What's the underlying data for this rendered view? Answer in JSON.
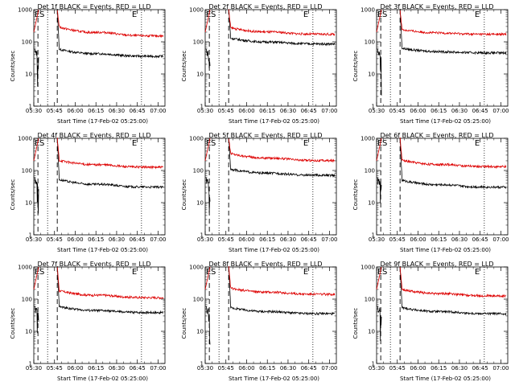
{
  "chart_data": [
    {
      "type": "line",
      "title": "Det 1f BLACK = Events, RED = LLD",
      "ylabel": "Counts/sec",
      "xlabel": "Start Time (17-Feb-02 05:25:00)",
      "xticks": [
        "05:30",
        "05:45",
        "06:00",
        "06:15",
        "06:30",
        "06:45",
        "07:00"
      ],
      "yticks": [
        "1",
        "10",
        "100",
        "1000"
      ],
      "x_range_min": [
        5,
        100
      ],
      "yscale": "log",
      "ylim": [
        1,
        1000
      ],
      "markers": {
        "E_label": "E",
        "S_label": "S",
        "dashed_min": [
          8,
          22
        ],
        "dotted_min": [
          15,
          83
        ]
      },
      "series": [
        {
          "name": "BLACK = Events",
          "color": "#000000",
          "plateau_min": 22,
          "peak": 1000,
          "end_level": 35,
          "mid_bump": 45
        },
        {
          "name": "RED = LLD",
          "color": "#dd0000",
          "plateau_min": 22,
          "peak": 1000,
          "end_level": 150,
          "mid_bump": 220
        }
      ]
    },
    {
      "type": "line",
      "title": "Det 2f BLACK = Events, RED = LLD",
      "ylabel": "Counts/sec",
      "xlabel": "Start Time (17-Feb-02 05:25:00)",
      "xticks": [
        "05:30",
        "05:45",
        "06:00",
        "06:15",
        "06:30",
        "06:45",
        "07:00"
      ],
      "yticks": [
        "1",
        "10",
        "100",
        "1000"
      ],
      "x_range_min": [
        5,
        100
      ],
      "yscale": "log",
      "ylim": [
        1,
        1000
      ],
      "markers": {
        "E_label": "E",
        "S_label": "S",
        "dashed_min": [
          8,
          22
        ],
        "dotted_min": [
          15,
          83
        ]
      },
      "series": [
        {
          "name": "BLACK = Events",
          "color": "#000000",
          "plateau_min": 22,
          "peak": 1000,
          "end_level": 85,
          "mid_bump": 100
        },
        {
          "name": "RED = LLD",
          "color": "#dd0000",
          "plateau_min": 22,
          "peak": 1000,
          "end_level": 170,
          "mid_bump": 210
        }
      ]
    },
    {
      "type": "line",
      "title": "Det 3f BLACK = Events, RED = LLD",
      "ylabel": "Counts/sec",
      "xlabel": "Start Time (17-Feb-02 05:25:00)",
      "xticks": [
        "05:30",
        "05:45",
        "06:00",
        "06:15",
        "06:30",
        "06:45",
        "07:00"
      ],
      "yticks": [
        "1",
        "10",
        "100",
        "1000"
      ],
      "x_range_min": [
        5,
        100
      ],
      "yscale": "log",
      "ylim": [
        1,
        1000
      ],
      "markers": {
        "E_label": "E",
        "S_label": "S",
        "dashed_min": [
          8,
          22
        ],
        "dotted_min": [
          15,
          83
        ]
      },
      "series": [
        {
          "name": "BLACK = Events",
          "color": "#000000",
          "plateau_min": 22,
          "peak": 1000,
          "end_level": 45,
          "mid_bump": 48
        },
        {
          "name": "RED = LLD",
          "color": "#dd0000",
          "plateau_min": 22,
          "peak": 1000,
          "end_level": 170,
          "mid_bump": 185
        }
      ]
    },
    {
      "type": "line",
      "title": "Det 4f BLACK = Events, RED = LLD",
      "ylabel": "Counts/sec",
      "xlabel": "Start Time (17-Feb-02 05:25:00)",
      "xticks": [
        "05:30",
        "05:45",
        "06:00",
        "06:15",
        "06:30",
        "06:45",
        "07:00"
      ],
      "yticks": [
        "1",
        "10",
        "100",
        "1000"
      ],
      "x_range_min": [
        5,
        100
      ],
      "yscale": "log",
      "ylim": [
        1,
        1000
      ],
      "markers": {
        "E_label": "E",
        "S_label": "S",
        "dashed_min": [
          8,
          22
        ],
        "dotted_min": [
          15,
          83
        ]
      },
      "series": [
        {
          "name": "BLACK = Events",
          "color": "#000000",
          "plateau_min": 22,
          "peak": 1000,
          "end_level": 30,
          "mid_bump": 40
        },
        {
          "name": "RED = LLD",
          "color": "#dd0000",
          "plateau_min": 22,
          "peak": 1000,
          "end_level": 125,
          "mid_bump": 160
        }
      ]
    },
    {
      "type": "line",
      "title": "Det 5f BLACK = Events, RED = LLD",
      "ylabel": "Counts/sec",
      "xlabel": "Start Time (17-Feb-02 05:25:00)",
      "xticks": [
        "05:30",
        "05:45",
        "06:00",
        "06:15",
        "06:30",
        "06:45",
        "07:00"
      ],
      "yticks": [
        "1",
        "10",
        "100",
        "1000"
      ],
      "x_range_min": [
        5,
        100
      ],
      "yscale": "log",
      "ylim": [
        1,
        1000
      ],
      "markers": {
        "E_label": "E",
        "S_label": "S",
        "dashed_min": [
          8,
          22
        ],
        "dotted_min": [
          15,
          83
        ]
      },
      "series": [
        {
          "name": "BLACK = Events",
          "color": "#000000",
          "plateau_min": 22,
          "peak": 1000,
          "end_level": 70,
          "mid_bump": 85
        },
        {
          "name": "RED = LLD",
          "color": "#dd0000",
          "plateau_min": 22,
          "peak": 1000,
          "end_level": 200,
          "mid_bump": 260
        }
      ]
    },
    {
      "type": "line",
      "title": "Det 6f BLACK = Events, RED = LLD",
      "ylabel": "Counts/sec",
      "xlabel": "Start Time (17-Feb-02 05:25:00)",
      "xticks": [
        "05:30",
        "05:45",
        "06:00",
        "06:15",
        "06:30",
        "06:45",
        "07:00"
      ],
      "yticks": [
        "1",
        "10",
        "100",
        "1000"
      ],
      "x_range_min": [
        5,
        100
      ],
      "yscale": "log",
      "ylim": [
        1,
        1000
      ],
      "markers": {
        "E_label": "E",
        "S_label": "S",
        "dashed_min": [
          8,
          22
        ],
        "dotted_min": [
          15,
          83
        ]
      },
      "series": [
        {
          "name": "BLACK = Events",
          "color": "#000000",
          "plateau_min": 22,
          "peak": 1000,
          "end_level": 30,
          "mid_bump": 38
        },
        {
          "name": "RED = LLD",
          "color": "#dd0000",
          "plateau_min": 22,
          "peak": 1000,
          "end_level": 130,
          "mid_bump": 160
        }
      ]
    },
    {
      "type": "line",
      "title": "Det 7f BLACK = Events, RED = LLD",
      "ylabel": "Counts/sec",
      "xlabel": "Start Time (17-Feb-02 05:25:00)",
      "xticks": [
        "05:30",
        "05:45",
        "06:00",
        "06:15",
        "06:30",
        "06:45",
        "07:00"
      ],
      "yticks": [
        "1",
        "10",
        "100",
        "1000"
      ],
      "x_range_min": [
        5,
        100
      ],
      "yscale": "log",
      "ylim": [
        1,
        1000
      ],
      "markers": {
        "E_label": "E",
        "S_label": "S",
        "dashed_min": [
          8,
          22
        ],
        "dotted_min": [
          15,
          83
        ]
      },
      "series": [
        {
          "name": "BLACK = Events",
          "color": "#000000",
          "plateau_min": 22,
          "peak": 1000,
          "end_level": 38,
          "mid_bump": 45
        },
        {
          "name": "RED = LLD",
          "color": "#dd0000",
          "plateau_min": 22,
          "peak": 1000,
          "end_level": 110,
          "mid_bump": 140
        }
      ]
    },
    {
      "type": "line",
      "title": "Det 8f BLACK = Events, RED = LLD",
      "ylabel": "Counts/sec",
      "xlabel": "Start Time (17-Feb-02 05:25:00)",
      "xticks": [
        "05:30",
        "05:45",
        "06:00",
        "06:15",
        "06:30",
        "06:45",
        "07:00"
      ],
      "yticks": [
        "1",
        "10",
        "100",
        "1000"
      ],
      "x_range_min": [
        5,
        100
      ],
      "yscale": "log",
      "ylim": [
        1,
        1000
      ],
      "markers": {
        "E_label": "E",
        "S_label": "S",
        "dashed_min": [
          8,
          22
        ],
        "dotted_min": [
          15,
          83
        ]
      },
      "series": [
        {
          "name": "BLACK = Events",
          "color": "#000000",
          "plateau_min": 22,
          "peak": 1000,
          "end_level": 35,
          "mid_bump": 42
        },
        {
          "name": "RED = LLD",
          "color": "#dd0000",
          "plateau_min": 22,
          "peak": 1000,
          "end_level": 140,
          "mid_bump": 170
        }
      ]
    },
    {
      "type": "line",
      "title": "Det 9f BLACK = Events, RED = LLD",
      "ylabel": "Counts/sec",
      "xlabel": "Start Time (17-Feb-02 05:25:00)",
      "xticks": [
        "05:30",
        "05:45",
        "06:00",
        "06:15",
        "06:30",
        "06:45",
        "07:00"
      ],
      "yticks": [
        "1",
        "10",
        "100",
        "1000"
      ],
      "x_range_min": [
        5,
        100
      ],
      "yscale": "log",
      "ylim": [
        1,
        1000
      ],
      "markers": {
        "E_label": "E",
        "S_label": "S",
        "dashed_min": [
          8,
          22
        ],
        "dotted_min": [
          15,
          83
        ]
      },
      "series": [
        {
          "name": "BLACK = Events",
          "color": "#000000",
          "plateau_min": 22,
          "peak": 1000,
          "end_level": 35,
          "mid_bump": 42
        },
        {
          "name": "RED = LLD",
          "color": "#dd0000",
          "plateau_min": 22,
          "peak": 1000,
          "end_level": 125,
          "mid_bump": 155
        }
      ]
    }
  ]
}
